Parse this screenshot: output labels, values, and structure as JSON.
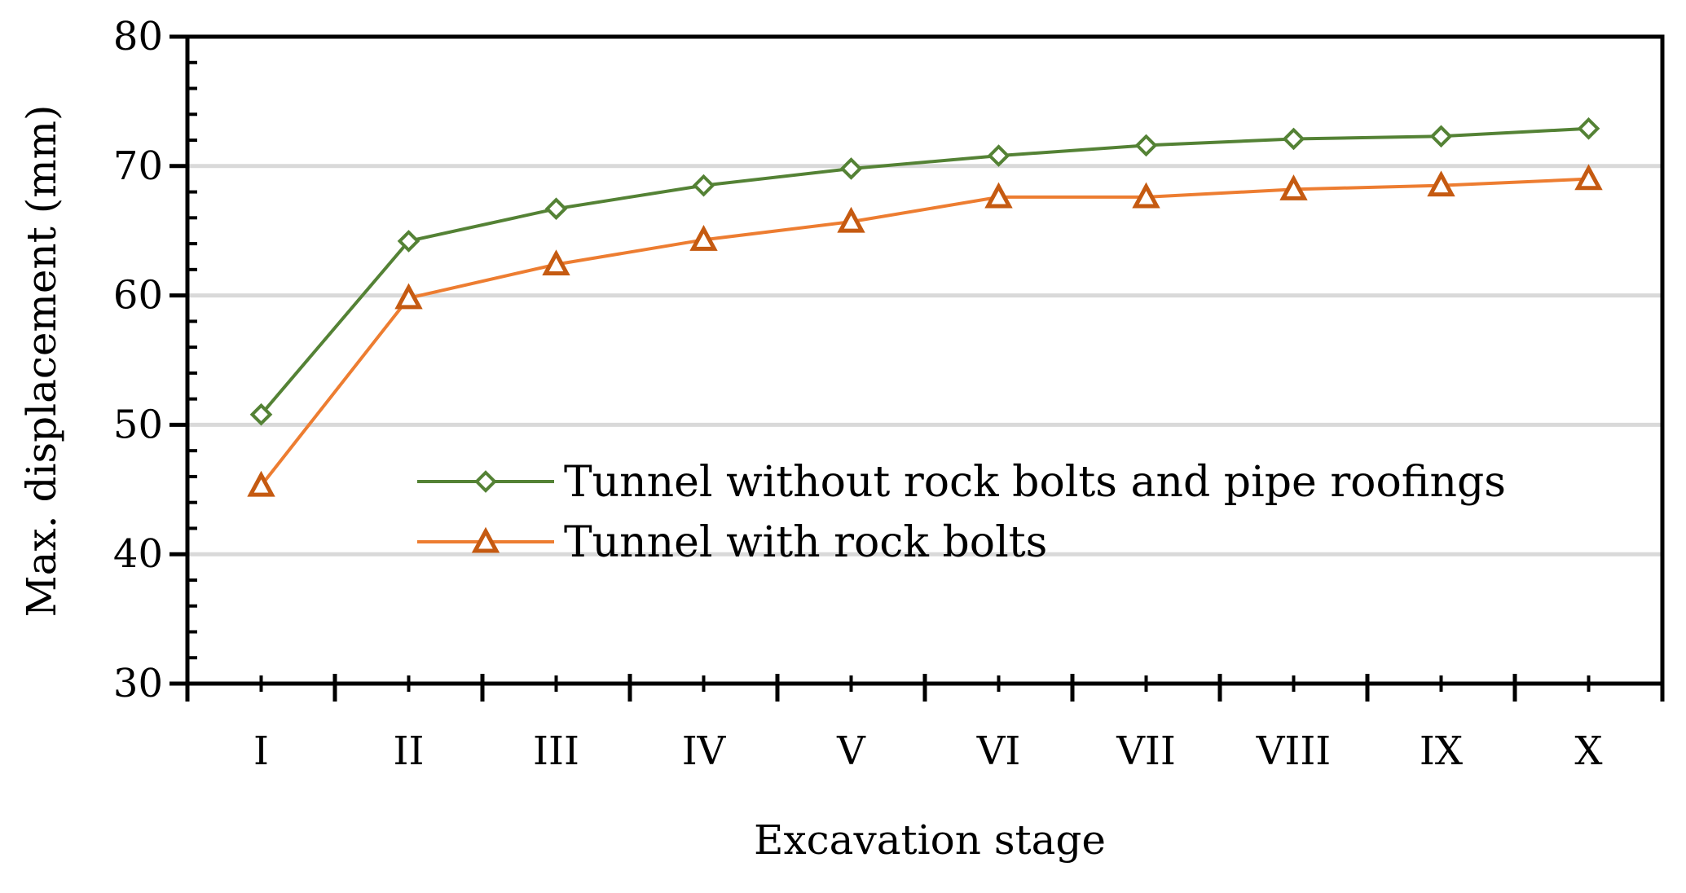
{
  "chart_data": {
    "type": "line",
    "title": "",
    "xlabel": "Excavation stage",
    "ylabel": "Max. displacement (mm)",
    "categories": [
      "I",
      "II",
      "III",
      "IV",
      "V",
      "VI",
      "VII",
      "VIII",
      "IX",
      "X"
    ],
    "ylim": [
      30,
      80
    ],
    "yticks": [
      30,
      40,
      50,
      60,
      70,
      80
    ],
    "ytick_labels": [
      "30",
      "40",
      "50",
      "60",
      "70",
      "80"
    ],
    "grid": true,
    "legend_position": "center-right",
    "series": [
      {
        "name": "Tunnel without rock bolts and pipe roofings",
        "marker": "diamond",
        "color": "#548235",
        "values": [
          50.8,
          64.2,
          66.7,
          68.5,
          69.8,
          70.8,
          71.6,
          72.1,
          72.3,
          72.9
        ]
      },
      {
        "name": "Tunnel with rock bolts",
        "marker": "triangle",
        "color": "#ED7D31",
        "marker_color": "#C55A11",
        "values": [
          45.3,
          59.8,
          62.4,
          64.3,
          65.7,
          67.6,
          67.6,
          68.2,
          68.5,
          69.0
        ]
      }
    ]
  }
}
